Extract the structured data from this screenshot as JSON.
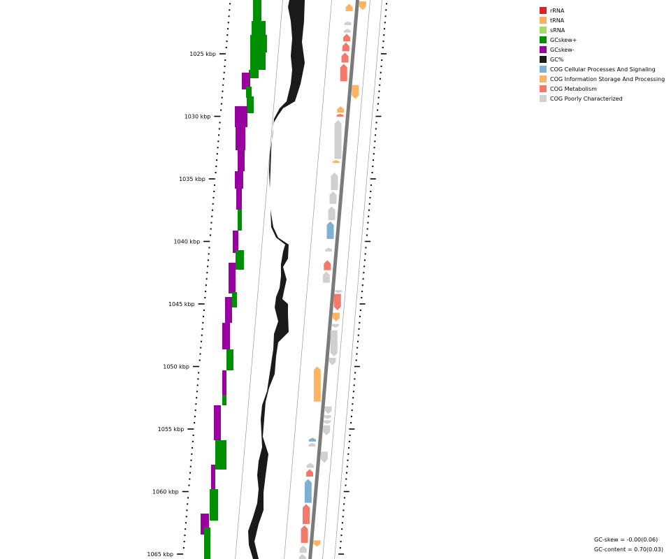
{
  "legend": {
    "items": [
      {
        "key": "rrna",
        "label": "rRNA",
        "color": "#d62728"
      },
      {
        "key": "trna",
        "label": "tRNA",
        "color": "#fdae61"
      },
      {
        "key": "srna",
        "label": "sRNA",
        "color": "#a6d96a"
      },
      {
        "key": "gcskew_pos",
        "label": "GCskew+",
        "color": "#008f00"
      },
      {
        "key": "gcskew_neg",
        "label": "GCskew-",
        "color": "#9900a0"
      },
      {
        "key": "gc",
        "label": "GC%",
        "color": "#1a1a1a"
      },
      {
        "key": "cog_cell",
        "label": "COG Cellular Processes And Signaling",
        "color": "#7eb0d5"
      },
      {
        "key": "cog_info",
        "label": "COG Information Storage And Processing",
        "color": "#fdb462"
      },
      {
        "key": "cog_metab",
        "label": "COG Metabolism",
        "color": "#f4796b"
      },
      {
        "key": "cog_poor",
        "label": "COG Poorly Characterized",
        "color": "#d0d0d0"
      }
    ]
  },
  "axis": {
    "unit": "kbp",
    "tick_labels": [
      "1025 kbp",
      "1030 kbp",
      "1035 kbp",
      "1040 kbp",
      "1045 kbp",
      "1050 kbp",
      "1055 kbp",
      "1060 kbp",
      "1065 kbp"
    ]
  },
  "stats": {
    "gc_skew": "GC-skew = -0.00(0.06)",
    "gc_content": "GC-content = 0.70(0.03)"
  },
  "features": {
    "forward": [
      {
        "cog": "cog_info",
        "start": 1021.0,
        "end": 1021.6
      },
      {
        "cog": "cog_poor",
        "start": 1022.4,
        "end": 1022.7
      },
      {
        "cog": "cog_poor",
        "start": 1023.0,
        "end": 1023.3
      },
      {
        "cog": "cog_metab",
        "start": 1023.4,
        "end": 1024.0
      },
      {
        "cog": "cog_metab",
        "start": 1024.1,
        "end": 1024.8
      },
      {
        "cog": "cog_metab",
        "start": 1024.9,
        "end": 1025.7
      },
      {
        "cog": "cog_metab",
        "start": 1025.8,
        "end": 1027.2
      },
      {
        "cog": "cog_info",
        "start": 1029.2,
        "end": 1029.7
      },
      {
        "cog": "cog_metab",
        "start": 1029.8,
        "end": 1030.0
      },
      {
        "cog": "cog_poor",
        "start": 1030.3,
        "end": 1033.4
      },
      {
        "cog": "cog_info",
        "start": 1033.5,
        "end": 1033.7
      },
      {
        "cog": "cog_poor",
        "start": 1034.5,
        "end": 1035.9
      },
      {
        "cog": "cog_poor",
        "start": 1036.0,
        "end": 1037.0
      },
      {
        "cog": "cog_poor",
        "start": 1037.2,
        "end": 1038.3
      },
      {
        "cog": "cog_cell",
        "start": 1038.4,
        "end": 1039.8
      },
      {
        "cog": "cog_poor",
        "start": 1040.5,
        "end": 1040.8
      },
      {
        "cog": "cog_metab",
        "start": 1041.5,
        "end": 1042.3
      },
      {
        "cog": "cog_poor",
        "start": 1042.4,
        "end": 1043.3
      },
      {
        "cog": "cog_info",
        "start": 1050.0,
        "end": 1052.8
      },
      {
        "cog": "cog_cell",
        "start": 1055.7,
        "end": 1056.0
      },
      {
        "cog": "cog_poor",
        "start": 1056.1,
        "end": 1056.4
      },
      {
        "cog": "cog_poor",
        "start": 1057.7,
        "end": 1058.1
      },
      {
        "cog": "cog_metab",
        "start": 1058.2,
        "end": 1058.8
      },
      {
        "cog": "cog_cell",
        "start": 1059.0,
        "end": 1060.9
      },
      {
        "cog": "cog_metab",
        "start": 1061.0,
        "end": 1062.6
      },
      {
        "cog": "cog_metab",
        "start": 1062.7,
        "end": 1064.1
      },
      {
        "cog": "cog_poor",
        "start": 1064.3,
        "end": 1064.9
      },
      {
        "cog": "cog_poor",
        "start": 1065.0,
        "end": 1065.5
      }
    ],
    "reverse": [
      {
        "cog": "cog_info",
        "start": 1020.8,
        "end": 1021.5
      },
      {
        "cog": "cog_info",
        "start": 1027.5,
        "end": 1028.6
      },
      {
        "cog": "cog_poor",
        "start": 1043.9,
        "end": 1044.1
      },
      {
        "cog": "cog_metab",
        "start": 1044.2,
        "end": 1045.5
      },
      {
        "cog": "cog_info",
        "start": 1045.7,
        "end": 1046.4
      },
      {
        "cog": "cog_poor",
        "start": 1046.6,
        "end": 1046.9
      },
      {
        "cog": "cog_poor",
        "start": 1047.1,
        "end": 1049.2
      },
      {
        "cog": "cog_poor",
        "start": 1049.3,
        "end": 1049.9
      },
      {
        "cog": "cog_poor",
        "start": 1053.2,
        "end": 1053.8
      },
      {
        "cog": "cog_poor",
        "start": 1053.9,
        "end": 1054.2
      },
      {
        "cog": "cog_poor",
        "start": 1054.3,
        "end": 1054.6
      },
      {
        "cog": "cog_poor",
        "start": 1054.7,
        "end": 1055.5
      },
      {
        "cog": "cog_poor",
        "start": 1056.8,
        "end": 1057.7
      },
      {
        "cog": "cog_info",
        "start": 1063.9,
        "end": 1064.4
      }
    ]
  }
}
